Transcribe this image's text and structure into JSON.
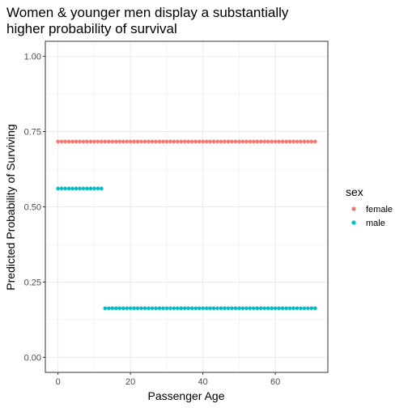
{
  "chart_data": {
    "type": "scatter",
    "title_lines": [
      "Women & younger men display a substantially",
      "higher probability of survival"
    ],
    "xlabel": "Passenger Age",
    "ylabel": "Predicted Probability of Surviving",
    "xlim": [
      -3.5,
      74.5
    ],
    "ylim": [
      -0.05,
      1.05
    ],
    "x_ticks": [
      0,
      20,
      40,
      60
    ],
    "y_ticks": [
      0.0,
      0.25,
      0.5,
      0.75,
      1.0
    ],
    "x_tick_labels": [
      "0",
      "20",
      "40",
      "60"
    ],
    "y_tick_labels": [
      "0.00",
      "0.25",
      "0.50",
      "0.75",
      "1.00"
    ],
    "grid": true,
    "legend": {
      "title": "sex",
      "position": "right"
    },
    "series": [
      {
        "name": "female",
        "color": "#F8766D",
        "x": [
          0,
          1,
          2,
          3,
          4,
          5,
          6,
          7,
          8,
          9,
          10,
          11,
          12,
          13,
          14,
          15,
          16,
          17,
          18,
          19,
          20,
          21,
          22,
          23,
          24,
          25,
          26,
          27,
          28,
          29,
          30,
          31,
          32,
          33,
          34,
          35,
          36,
          37,
          38,
          39,
          40,
          41,
          42,
          43,
          44,
          45,
          46,
          47,
          48,
          49,
          50,
          51,
          52,
          53,
          54,
          55,
          56,
          57,
          58,
          59,
          60,
          61,
          62,
          63,
          64,
          65,
          66,
          67,
          68,
          69,
          70,
          71
        ],
        "y_constant": 0.717
      },
      {
        "name": "male",
        "segments": [
          {
            "x": [
              0,
              1,
              2,
              3,
              4,
              5,
              6,
              7,
              8,
              9,
              10,
              11,
              12
            ],
            "y_constant": 0.561
          },
          {
            "x": [
              13,
              14,
              15,
              16,
              17,
              18,
              19,
              20,
              21,
              22,
              23,
              24,
              25,
              26,
              27,
              28,
              29,
              30,
              31,
              32,
              33,
              34,
              35,
              36,
              37,
              38,
              39,
              40,
              41,
              42,
              43,
              44,
              45,
              46,
              47,
              48,
              49,
              50,
              51,
              52,
              53,
              54,
              55,
              56,
              57,
              58,
              59,
              60,
              61,
              62,
              63,
              64,
              65,
              66,
              67,
              68,
              69,
              70,
              71
            ],
            "y_constant": 0.163
          }
        ],
        "color": "#00BFC4"
      }
    ]
  }
}
